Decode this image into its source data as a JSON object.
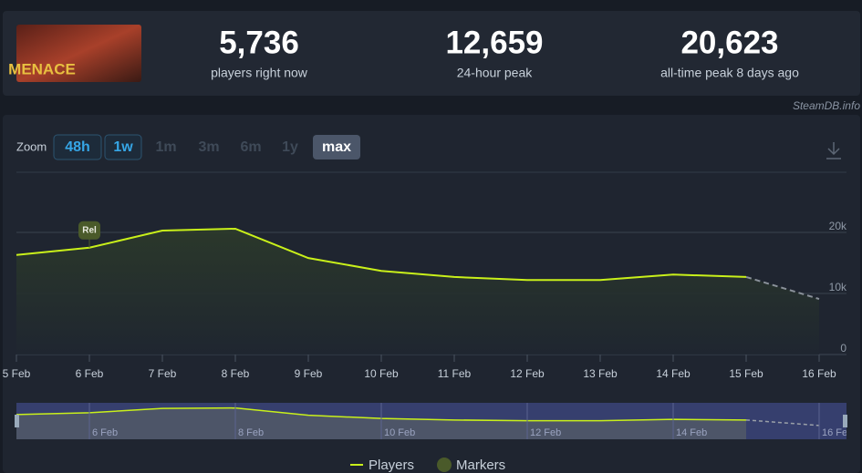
{
  "header": {
    "image_text": "MENACE",
    "stats": [
      {
        "value": "5,736",
        "label": "players right now"
      },
      {
        "value": "12,659",
        "label": "24-hour peak"
      },
      {
        "value": "20,623",
        "label": "all-time peak 8 days ago"
      }
    ]
  },
  "watermark": "SteamDB.info",
  "zoom": {
    "label": "Zoom",
    "options": [
      "48h",
      "1w",
      "1m",
      "3m",
      "6m",
      "1y",
      "max"
    ],
    "enabled": [
      true,
      true,
      false,
      false,
      false,
      false,
      true
    ],
    "active": "max"
  },
  "chart_data": {
    "type": "line",
    "categories": [
      "5 Feb",
      "6 Feb",
      "7 Feb",
      "8 Feb",
      "9 Feb",
      "10 Feb",
      "11 Feb",
      "12 Feb",
      "13 Feb",
      "14 Feb",
      "15 Feb",
      "16 Feb"
    ],
    "series": [
      {
        "name": "Players",
        "color": "#c9f01a",
        "values": [
          16300,
          17500,
          20300,
          20600,
          15800,
          13700,
          12700,
          12200,
          12200,
          13100,
          12700,
          null
        ],
        "forecast_values": [
          null,
          null,
          null,
          null,
          null,
          null,
          null,
          null,
          null,
          null,
          12700,
          9100
        ]
      }
    ],
    "markers": {
      "name": "Markers",
      "color": "#4a5a2a",
      "items": [
        {
          "category": "6 Feb",
          "label": "Rel"
        }
      ]
    },
    "ylim": [
      0,
      30000
    ],
    "yticks": [
      0,
      {
        "value": 10000,
        "label": "10k"
      },
      {
        "value": 20000,
        "label": "20k"
      }
    ],
    "grid": true
  }
}
